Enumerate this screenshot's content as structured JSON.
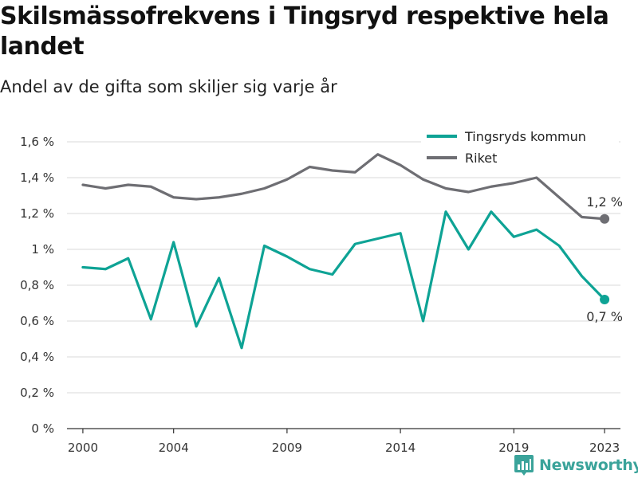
{
  "title": "Skilsmässofrekvens i Tingsryd respektive hela landet",
  "subtitle": "Andel av de gifta som skiljer sig varje år",
  "brand": {
    "name": "Newsworthy",
    "icon": "bar-chart-pin-icon",
    "color": "#3aa39a"
  },
  "colors": {
    "tingsryd": "#0ea395",
    "riket": "#6e6e73",
    "grid": "#d9d9d9",
    "axis": "#333333"
  },
  "chart_data": {
    "type": "line",
    "title": "Skilsmässofrekvens i Tingsryd respektive hela landet",
    "subtitle": "Andel av de gifta som skiljer sig varje år",
    "xlabel": "",
    "ylabel": "",
    "ylim": [
      0,
      1.6
    ],
    "xlim": [
      1999.3,
      2023.7
    ],
    "y_ticks": [
      0,
      0.2,
      0.4,
      0.6,
      0.8,
      1.0,
      1.2,
      1.4,
      1.6
    ],
    "y_tick_labels": [
      "0 %",
      "0,2 %",
      "0,4 %",
      "0,6 %",
      "0,8 %",
      "1 %",
      "1,2 %",
      "1,4 %",
      "1,6 %"
    ],
    "x_ticks": [
      2000,
      2004,
      2009,
      2014,
      2019,
      2023
    ],
    "x_tick_labels": [
      "2000",
      "2004",
      "2009",
      "2014",
      "2019",
      "2023"
    ],
    "grid": true,
    "legend_position": "top-right",
    "x": [
      2000,
      2001,
      2002,
      2003,
      2004,
      2005,
      2006,
      2007,
      2008,
      2009,
      2010,
      2011,
      2012,
      2013,
      2014,
      2015,
      2016,
      2017,
      2018,
      2019,
      2020,
      2021,
      2022,
      2023
    ],
    "series": [
      {
        "name": "Tingsryds kommun",
        "color": "#0ea395",
        "values": [
          0.9,
          0.89,
          0.95,
          0.61,
          1.04,
          0.57,
          0.84,
          0.45,
          1.02,
          0.96,
          0.89,
          0.86,
          1.03,
          1.06,
          1.09,
          0.6,
          1.21,
          1.0,
          1.21,
          1.07,
          1.11,
          1.02,
          0.85,
          0.72
        ],
        "end_label": "0,7 %"
      },
      {
        "name": "Riket",
        "color": "#6e6e73",
        "values": [
          1.36,
          1.34,
          1.36,
          1.35,
          1.29,
          1.28,
          1.29,
          1.31,
          1.34,
          1.39,
          1.46,
          1.44,
          1.43,
          1.53,
          1.47,
          1.39,
          1.34,
          1.32,
          1.35,
          1.37,
          1.4,
          1.29,
          1.18,
          1.17
        ],
        "end_label": "1,2 %"
      }
    ]
  }
}
